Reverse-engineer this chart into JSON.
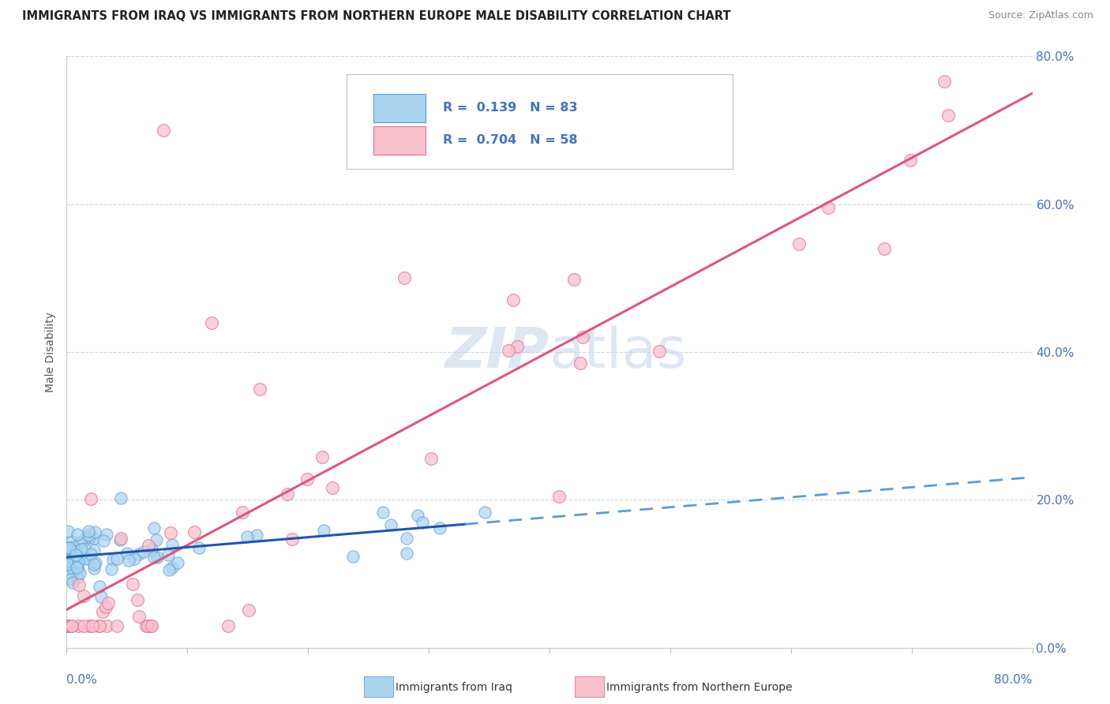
{
  "title": "IMMIGRANTS FROM IRAQ VS IMMIGRANTS FROM NORTHERN EUROPE MALE DISABILITY CORRELATION CHART",
  "source": "Source: ZipAtlas.com",
  "ylabel": "Male Disability",
  "xmin": 0.0,
  "xmax": 0.8,
  "ymin": 0.0,
  "ymax": 0.8,
  "iraq_R": 0.139,
  "iraq_N": 83,
  "ne_R": 0.704,
  "ne_N": 58,
  "iraq_marker_face": "#aad4f0",
  "iraq_marker_edge": "#5b9bd5",
  "ne_marker_face": "#f9c0ce",
  "ne_marker_edge": "#e07090",
  "trend_iraq_solid_color": "#2255aa",
  "trend_iraq_dash_color": "#5b9bd5",
  "trend_ne_color": "#e05580",
  "watermark_color": "#c8d8e8",
  "ytick_values": [
    0.0,
    0.2,
    0.4,
    0.6,
    0.8
  ],
  "grid_color": "#c8d0dc",
  "background_color": "#ffffff",
  "title_color": "#222222",
  "axis_label_color": "#4472c4",
  "legend_text_color": "#4472c4",
  "seed": 42
}
